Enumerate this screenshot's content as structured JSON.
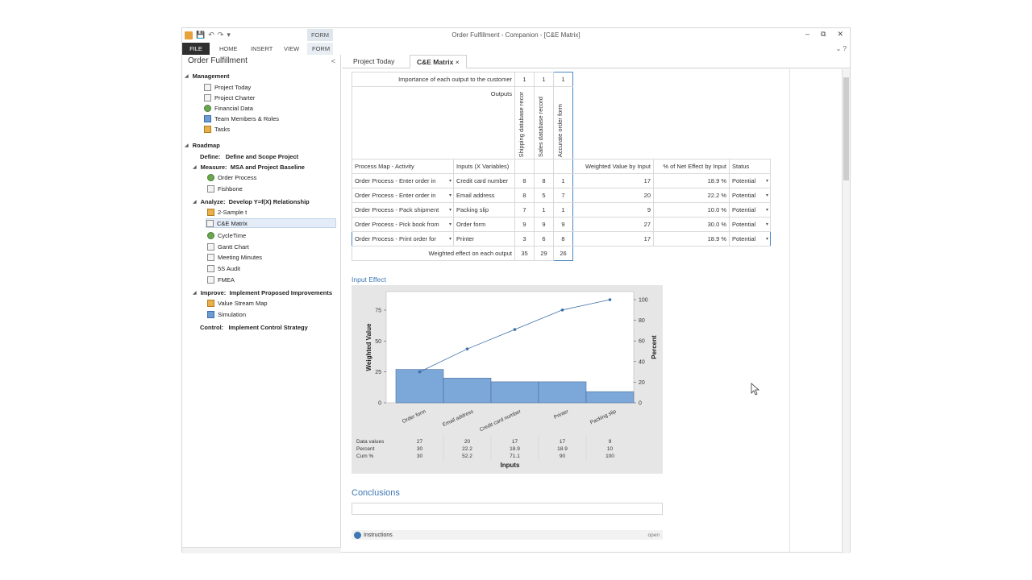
{
  "window": {
    "title": "Order Fulfillment - Companion - [C&E Matrix]",
    "minimize": "–",
    "restore": "⧉",
    "close": "✕",
    "ribbon_options": "⌄",
    "help": "?"
  },
  "ribbon": {
    "context_group": "FORM",
    "tabs": [
      "FILE",
      "HOME",
      "INSERT",
      "VIEW",
      "FORM"
    ]
  },
  "sidebar": {
    "title": "Order Fulfillment",
    "collapse": "<",
    "sections": {
      "management": "Management",
      "project_today": "Project Today",
      "project_charter": "Project Charter",
      "financial_data": "Financial Data",
      "team_members": "Team Members & Roles",
      "tasks": "Tasks",
      "roadmap": "Roadmap",
      "define_label": "Define:",
      "define_value": "Define and Scope Project",
      "measure_label": "Measure:",
      "measure_value": "MSA and Project Baseline",
      "order_process": "Order Process",
      "fishbone": "Fishbone",
      "analyze_label": "Analyze:",
      "analyze_value": "Develop Y=f(X) Relationship",
      "two_sample_t": "2-Sample t",
      "ce_matrix": "C&E Matrix",
      "cycletime": "CycleTime",
      "gantt": "Gantt Chart",
      "meeting": "Meeting Minutes",
      "five_s": "5S Audit",
      "fmea": "FMEA",
      "improve_label": "Improve:",
      "improve_value": "Implement Proposed Improvements",
      "vsm": "Value Stream Map",
      "simulation": "Simulation",
      "control_label": "Control:",
      "control_value": "Implement Control Strategy"
    }
  },
  "doc_tabs": {
    "tab1": "Project Today",
    "tab2": "C&E Matrix",
    "tab2_close": "×"
  },
  "matrix": {
    "importance_label": "Importance of each output to the customer",
    "importance": [
      "1",
      "1",
      "1"
    ],
    "outputs_label": "Outputs",
    "outputs": [
      "Shipping database recor",
      "Sales database record",
      "Accurate order form"
    ],
    "headers": {
      "activity": "Process Map - Activity",
      "inputs": "Inputs (X Variables)",
      "weighted": "Weighted Value by Input",
      "percent": "% of Net Effect by Input",
      "status": "Status"
    },
    "rows": [
      {
        "activity": "Order Process - Enter order in",
        "input": "Credit card number",
        "a": "8",
        "b": "8",
        "c": "1",
        "weighted": "17",
        "pct": "18.9 %",
        "status": "Potential"
      },
      {
        "activity": "Order Process - Enter order in",
        "input": "Email address",
        "a": "8",
        "b": "5",
        "c": "7",
        "weighted": "20",
        "pct": "22.2 %",
        "status": "Potential"
      },
      {
        "activity": "Order Process - Pack shipment",
        "input": "Packing slip",
        "a": "7",
        "b": "1",
        "c": "1",
        "weighted": "9",
        "pct": "10.0 %",
        "status": "Potential"
      },
      {
        "activity": "Order Process - Pick book from",
        "input": "Order form",
        "a": "9",
        "b": "9",
        "c": "9",
        "weighted": "27",
        "pct": "30.0 %",
        "status": "Potential"
      },
      {
        "activity": "Order Process - Print order for",
        "input": "Printer",
        "a": "3",
        "b": "6",
        "c": "8",
        "weighted": "17",
        "pct": "18.9 %",
        "status": "Potential"
      }
    ],
    "totals_label": "Weighted effect on each output",
    "totals": [
      "35",
      "29",
      "26"
    ],
    "dropdown_glyph": "▾"
  },
  "input_effect_title": "Input Effect",
  "chart_data": {
    "type": "bar",
    "title": "",
    "categories": [
      "Order form",
      "Email address",
      "Credit card number",
      "Printer",
      "Packing slip"
    ],
    "series": [
      {
        "name": "Data values",
        "values": [
          27,
          20,
          17,
          17,
          9
        ]
      },
      {
        "name": "Cum %",
        "values": [
          30,
          52.2,
          71.1,
          90,
          100
        ]
      }
    ],
    "xlabel": "Inputs",
    "ylabel": "Weighted Value",
    "y2label": "Percent",
    "ylim": [
      0,
      90
    ],
    "y2lim": [
      0,
      100
    ],
    "yticks": [
      "0",
      "25",
      "50",
      "75"
    ],
    "y2ticks": [
      "0",
      "20",
      "40",
      "60",
      "80",
      "100"
    ],
    "table": {
      "row_labels": [
        "Data values",
        "Percent",
        "Cum %"
      ],
      "values": [
        [
          "27",
          "20",
          "17",
          "17",
          "9"
        ],
        [
          "30",
          "22.2",
          "18.9",
          "18.9",
          "10"
        ],
        [
          "30",
          "52.2",
          "71.1",
          "90",
          "100"
        ]
      ]
    },
    "colors": {
      "bars": "#7ba7d9",
      "line": "#3d6ea8"
    }
  },
  "conclusions": "Conclusions",
  "instructions": {
    "label": "Instructions",
    "open": "open"
  }
}
